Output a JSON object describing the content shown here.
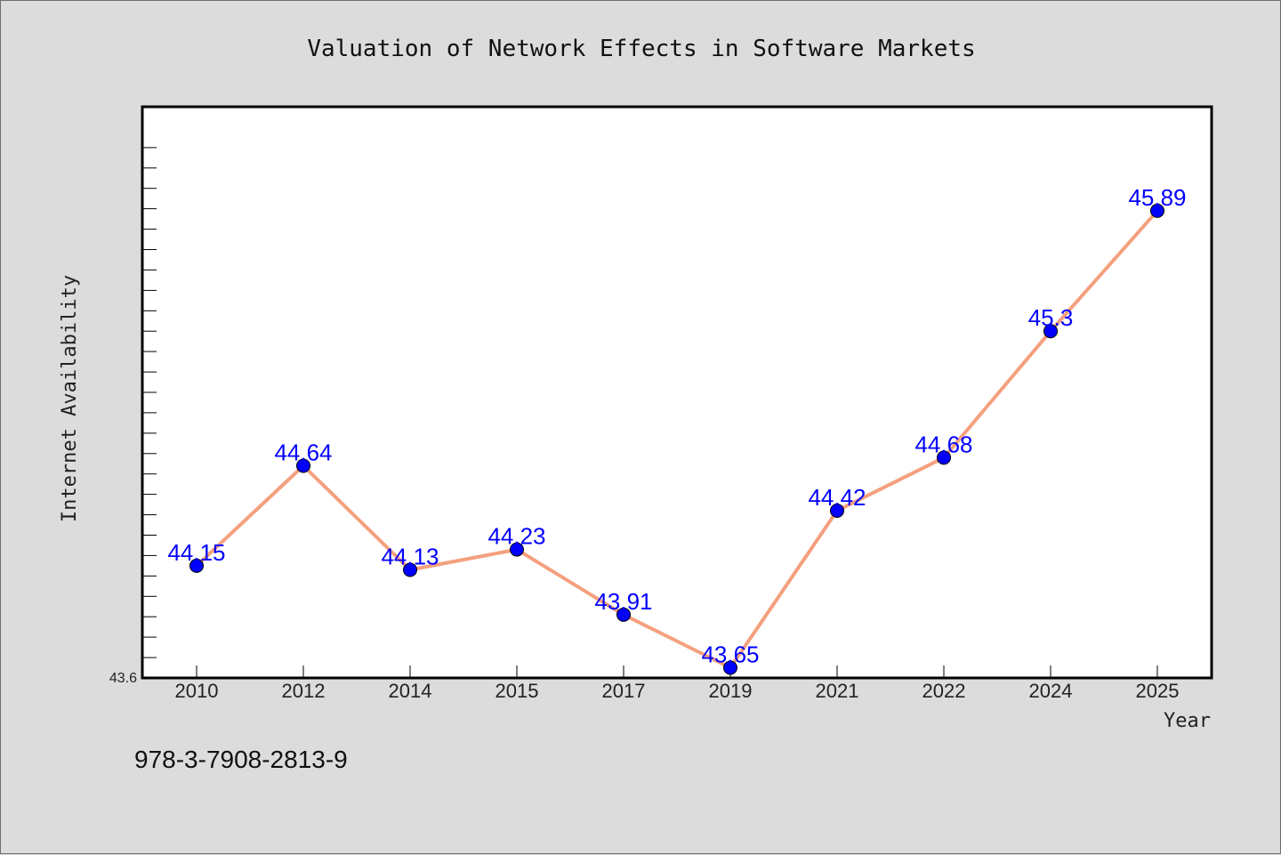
{
  "chart_data": {
    "type": "line",
    "title": "Valuation of Network Effects in Software Markets",
    "xlabel": "Year",
    "ylabel": "Internet Availability",
    "categories": [
      "2010",
      "2012",
      "2014",
      "2015",
      "2017",
      "2019",
      "2021",
      "2022",
      "2024",
      "2025"
    ],
    "series": [
      {
        "values": [
          44.15,
          44.64,
          44.13,
          44.23,
          43.91,
          43.65,
          44.42,
          44.68,
          45.3,
          45.89
        ],
        "labels": [
          "44.15",
          "44.64",
          "44.13",
          "44.23",
          "43.91",
          "43.65",
          "44.42",
          "44.68",
          "45.3",
          "45.89"
        ],
        "line_color": "#f4a07e",
        "marker_color": "#0000ff"
      }
    ],
    "ylim": [
      43.6,
      46.4
    ],
    "y_tick_label": "43.6",
    "grid": false,
    "legend": "none",
    "background": "#dcdcdc",
    "plot_background": "#ffffff"
  },
  "footer": {
    "isbn": "978-3-7908-2813-9"
  }
}
